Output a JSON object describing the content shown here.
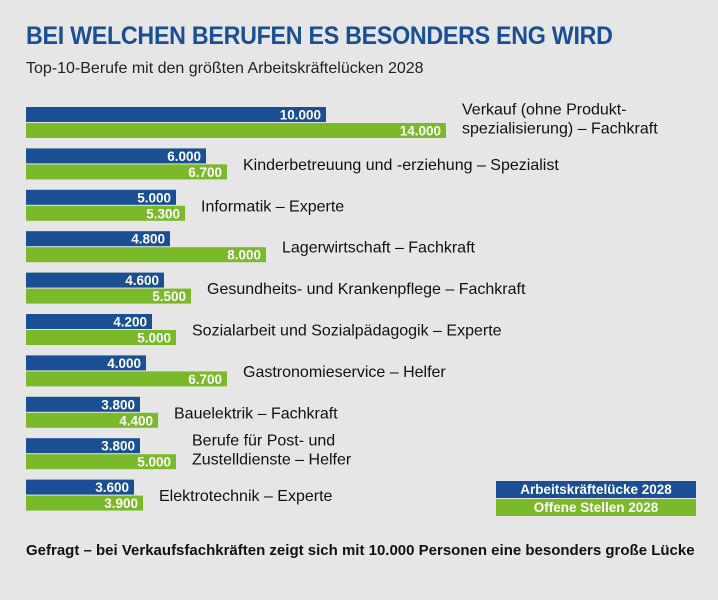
{
  "header": {
    "title": "BEI WELCHEN BERUFEN ES BESONDERS ENG WIRD",
    "subtitle": "Top-10-Berufe mit den größten Arbeitskräftelücken 2028"
  },
  "caption": "Gefragt – bei Verkaufsfachkräften zeigt sich mit 10.000 Personen eine besonders große Lücke",
  "colors": {
    "series1": "#1a4f93",
    "series2": "#7ab929",
    "label_text": "#ffffff",
    "category_text": "#111111"
  },
  "chart_data": {
    "type": "bar",
    "orientation": "horizontal",
    "categories": [
      [
        "Verkauf (ohne Produkt-",
        "spezialisierung) – Fachkraft"
      ],
      [
        "Kinderbetreuung und -erziehung – Spezialist"
      ],
      [
        "Informatik – Experte"
      ],
      [
        "Lagerwirtschaft – Fachkraft"
      ],
      [
        "Gesundheits- und Krankenpflege – Fachkraft"
      ],
      [
        "Sozialarbeit und Sozialpädagogik – Experte"
      ],
      [
        "Gastronomieservice – Helfer"
      ],
      [
        "Bauelektrik – Fachkraft"
      ],
      [
        "Berufe für Post- und",
        "Zustelldienste – Helfer"
      ],
      [
        "Elektrotechnik – Experte"
      ]
    ],
    "series": [
      {
        "name": "Arbeitskräftelücke 2028",
        "values": [
          10000,
          6000,
          5000,
          4800,
          4600,
          4200,
          4000,
          3800,
          3800,
          3600
        ],
        "labels": [
          "10.000",
          "6.000",
          "5.000",
          "4.800",
          "4.600",
          "4.200",
          "4.000",
          "3.800",
          "3.800",
          "3.600"
        ]
      },
      {
        "name": "Offene Stellen 2028",
        "values": [
          14000,
          6700,
          5300,
          8000,
          5500,
          5000,
          6700,
          4400,
          5000,
          3900
        ],
        "labels": [
          "14.000",
          "6.700",
          "5.300",
          "8.000",
          "5.500",
          "5.000",
          "6.700",
          "4.400",
          "5.000",
          "3.900"
        ]
      }
    ],
    "legend": "bottom-right",
    "grid": false
  }
}
